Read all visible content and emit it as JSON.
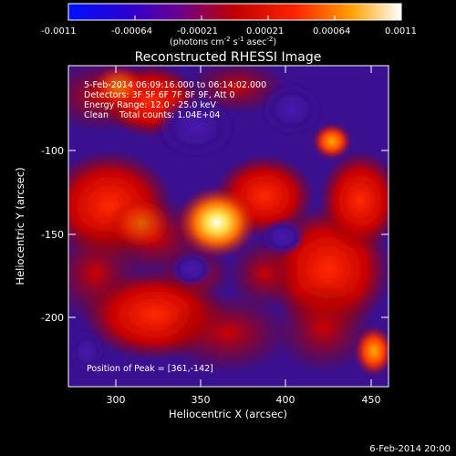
{
  "colorbar": {
    "ticks": [
      "-0.0011",
      "-0.00064",
      "-0.00021",
      "0.00021",
      "0.00064",
      "0.0011"
    ],
    "unit_main": "(photons cm",
    "unit_sup1": "-2",
    "unit_mid": " s",
    "unit_sup2": "-1",
    "unit_mid2": " asec",
    "unit_sup3": "-2",
    "unit_end": ")"
  },
  "title": "Reconstructed RHESSI Image",
  "info": {
    "time_range": "5-Feb-2014 06:09:16.000 to 06:14:02.000",
    "detectors": "Detectors: 3F 5F 6F 7F 8F 9F, Att 0",
    "energy": "Energy Range: 12.0 - 25.0 keV",
    "clean": "Clean    Total counts: 1.04E+04",
    "peak": "Position of Peak = [361,-142]"
  },
  "axes": {
    "xlabel": "Heliocentric X (arcsec)",
    "ylabel": "Heliocentric Y (arcsec)",
    "x_ticks": [
      "300",
      "350",
      "400",
      "450"
    ],
    "y_ticks": [
      "-100",
      "-150",
      "-200"
    ]
  },
  "footer_date": "6-Feb-2014 20:00",
  "map_data": {
    "peak_position": [
      361,
      -142
    ],
    "sources": [
      {
        "x": 361,
        "y": -142,
        "intensity": 1.0
      },
      {
        "x": 428,
        "y": -92,
        "intensity": 0.55
      },
      {
        "x": 452,
        "y": -230,
        "intensity": 0.6
      },
      {
        "x": 310,
        "y": -75,
        "intensity": 0.35
      }
    ]
  }
}
